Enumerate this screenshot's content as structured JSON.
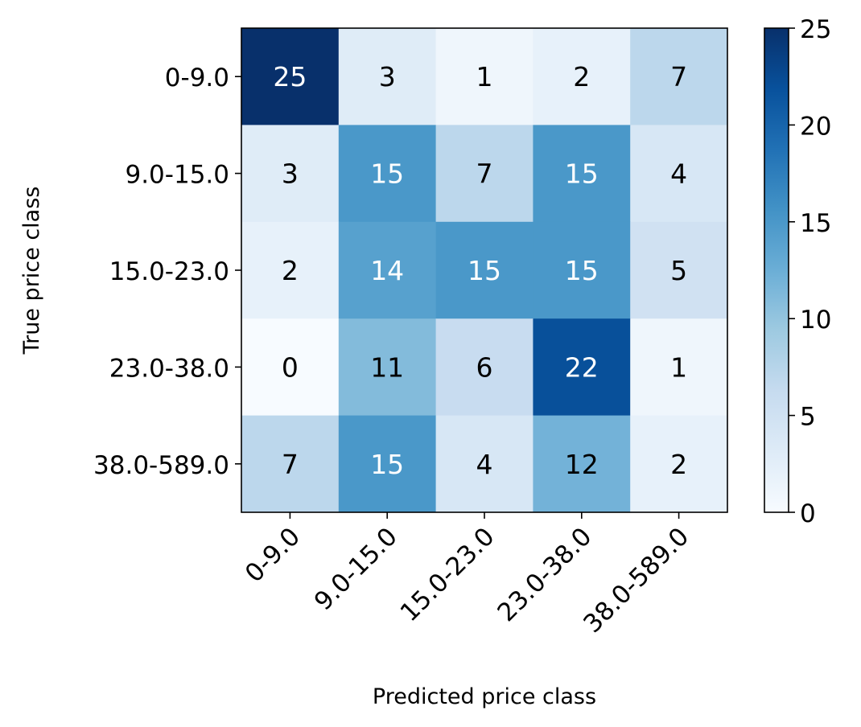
{
  "chart_data": {
    "type": "heatmap",
    "xlabel": "Predicted price class",
    "ylabel": "True price class",
    "x_categories": [
      "0-9.0",
      "9.0-15.0",
      "15.0-23.0",
      "23.0-38.0",
      "38.0-589.0"
    ],
    "y_categories": [
      "0-9.0",
      "9.0-15.0",
      "15.0-23.0",
      "23.0-38.0",
      "38.0-589.0"
    ],
    "values": [
      [
        25,
        3,
        1,
        2,
        7
      ],
      [
        3,
        15,
        7,
        15,
        4
      ],
      [
        2,
        14,
        15,
        15,
        5
      ],
      [
        0,
        11,
        6,
        22,
        1
      ],
      [
        7,
        15,
        4,
        12,
        2
      ]
    ],
    "colorscale": "Blues",
    "colorbar": {
      "min": 0,
      "max": 25,
      "ticks": [
        0,
        5,
        10,
        15,
        20,
        25
      ]
    }
  }
}
